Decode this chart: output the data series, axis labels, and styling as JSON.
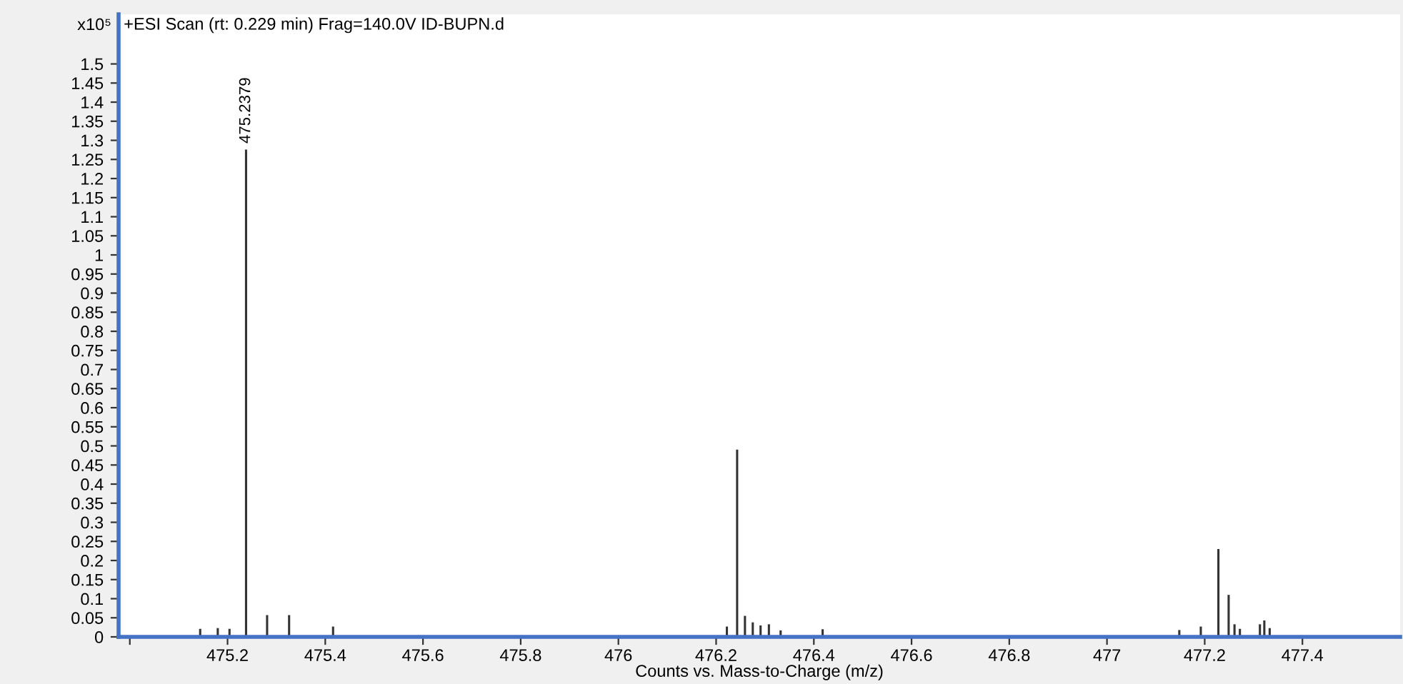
{
  "chart_data": {
    "type": "bar",
    "title": "+ESI Scan (rt: 0.229 min) Frag=140.0V ID-BUPN.d",
    "xlabel": "Counts vs. Mass-to-Charge (m/z)",
    "ylabel": "x10⁵",
    "x": [
      475.144,
      475.18,
      475.204,
      475.2379,
      475.281,
      475.326,
      475.416,
      476.222,
      476.243,
      476.259,
      476.275,
      476.291,
      476.308,
      476.332,
      476.418,
      477.148,
      477.192,
      477.228,
      477.249,
      477.261,
      477.272,
      477.313,
      477.322,
      477.333
    ],
    "values": [
      0.021,
      0.023,
      0.021,
      1.276,
      0.057,
      0.057,
      0.027,
      0.027,
      0.49,
      0.055,
      0.038,
      0.03,
      0.033,
      0.017,
      0.02,
      0.018,
      0.027,
      0.23,
      0.11,
      0.033,
      0.021,
      0.033,
      0.043,
      0.023
    ],
    "color": "#333333",
    "annotations": [
      {
        "text": "475.2379",
        "x": 475.2379,
        "y": 1.276
      }
    ],
    "xlim": [
      474.977,
      477.6
    ],
    "xticks": [
      {
        "value": 475,
        "label": null
      },
      475.2,
      475.4,
      475.6,
      475.8,
      476,
      476.2,
      476.4,
      476.6,
      476.8,
      477,
      477.2,
      477.4
    ],
    "ylim": [
      0,
      1.63
    ],
    "yticks": [
      0,
      0.05,
      0.1,
      0.15,
      0.2,
      0.25,
      0.3,
      0.35,
      0.4,
      0.45,
      0.5,
      0.55,
      0.6,
      0.65,
      0.7,
      0.75,
      0.8,
      0.85,
      0.9,
      0.95,
      1,
      1.05,
      1.1,
      1.15,
      1.2,
      1.25,
      1.3,
      1.35,
      1.4,
      1.45,
      1.5
    ],
    "grid": false,
    "legend": false
  }
}
